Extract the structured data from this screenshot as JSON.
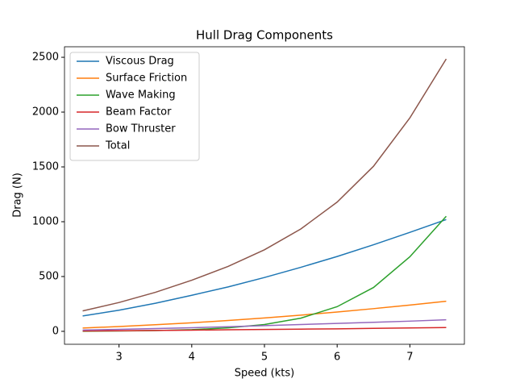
{
  "chart_data": {
    "type": "line",
    "title": "Hull Drag Components",
    "xlabel": "Speed (kts)",
    "ylabel": "Drag (N)",
    "x": [
      2.5,
      3,
      3.5,
      4,
      4.5,
      5,
      5.5,
      6,
      6.5,
      7,
      7.5
    ],
    "series": [
      {
        "name": "Viscous Drag",
        "color": "#1f77b4",
        "values": [
          140,
          193,
          256,
          329,
          405,
          491,
          584,
          683,
          790,
          903,
          1020
        ]
      },
      {
        "name": "Surface Friction",
        "color": "#ff7f0e",
        "values": [
          30,
          44,
          60,
          78,
          99,
          122,
          148,
          176,
          207,
          240,
          275
        ]
      },
      {
        "name": "Wave Making",
        "color": "#2ca02c",
        "values": [
          1,
          3,
          7,
          15,
          32,
          62,
          120,
          225,
          400,
          680,
          1050
        ]
      },
      {
        "name": "Beam Factor",
        "color": "#d62728",
        "values": [
          3,
          5,
          8,
          11,
          14,
          17,
          20,
          23,
          27,
          31,
          35
        ]
      },
      {
        "name": "Bow Thruster",
        "color": "#9467bd",
        "values": [
          12,
          18,
          25,
          33,
          42,
          52,
          62,
          72,
          82,
          93,
          105
        ]
      },
      {
        "name": "Total",
        "color": "#8c564b",
        "values": [
          186,
          263,
          356,
          466,
          592,
          744,
          934,
          1179,
          1506,
          1947,
          2485
        ]
      }
    ],
    "xlim": [
      2.25,
      7.75
    ],
    "ylim": [
      -118,
      2596
    ],
    "xticks": [
      3,
      4,
      5,
      6,
      7
    ],
    "yticks": [
      0,
      500,
      1000,
      1500,
      2000,
      2500
    ],
    "legend": "upper left"
  }
}
